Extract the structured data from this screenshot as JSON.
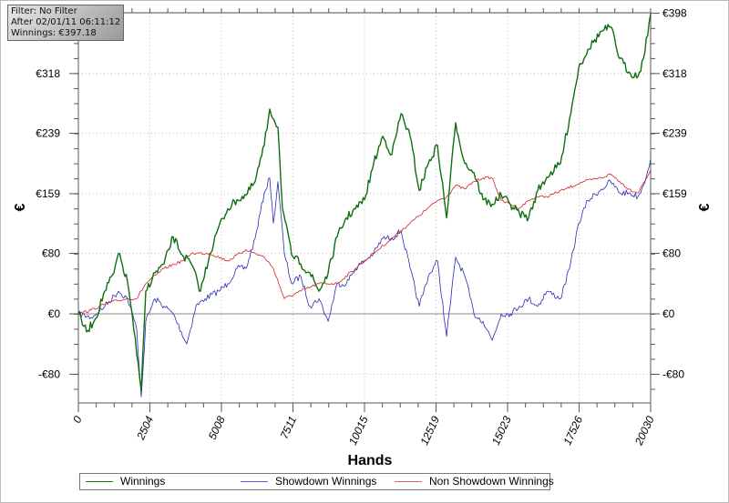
{
  "info_box": {
    "filter": "Filter: No Filter",
    "after": "After 02/01/11 06:11:12",
    "winnings": "Winnings: €397.18"
  },
  "chart_data": {
    "type": "line",
    "title": "",
    "xlabel": "Hands",
    "ylabel": "€",
    "xlim": [
      0,
      20030
    ],
    "ylim": [
      -118,
      398.5
    ],
    "x_ticks": [
      0,
      2504,
      5008,
      7511,
      10015,
      12519,
      15023,
      17526,
      20030
    ],
    "y_ticks": [
      {
        "value": 398,
        "label": "€398"
      },
      {
        "value": 318,
        "label": "€318"
      },
      {
        "value": 239,
        "label": "€239"
      },
      {
        "value": 159,
        "label": "€159"
      },
      {
        "value": 80,
        "label": "€80"
      },
      {
        "value": 0,
        "label": "€0"
      },
      {
        "value": -80,
        "label": "-€80"
      }
    ],
    "grid": true,
    "legend_position": "bottom",
    "series": [
      {
        "name": "Winnings",
        "color": "#1a7a1a",
        "x": [
          0,
          287,
          606,
          925,
          1244,
          1404,
          1723,
          1882,
          2042,
          2201,
          2361,
          2680,
          2999,
          3318,
          3637,
          3956,
          4275,
          4594,
          4913,
          5232,
          5551,
          5870,
          6189,
          6508,
          6699,
          6986,
          7146,
          7465,
          7784,
          8103,
          8422,
          8741,
          9060,
          9379,
          9698,
          10017,
          10336,
          10655,
          10974,
          11293,
          11612,
          11931,
          12250,
          12569,
          12888,
          13207,
          13526,
          13845,
          14164,
          14483,
          14802,
          15121,
          15440,
          15759,
          16078,
          16397,
          16876,
          17195,
          17514,
          17833,
          18311,
          18630,
          18949,
          19268,
          19587,
          19778,
          20030
        ],
        "y": [
          0,
          -24,
          -6,
          30,
          54,
          80,
          42,
          0,
          -54,
          -102,
          30,
          54,
          66,
          102,
          78,
          66,
          30,
          78,
          115,
          139,
          151,
          157,
          175,
          223,
          271,
          247,
          139,
          78,
          66,
          54,
          30,
          54,
          102,
          127,
          139,
          151,
          199,
          235,
          211,
          265,
          235,
          163,
          199,
          223,
          127,
          253,
          199,
          187,
          151,
          145,
          157,
          145,
          133,
          127,
          163,
          181,
          199,
          259,
          326,
          350,
          374,
          380,
          338,
          320,
          314,
          338,
          397
        ]
      },
      {
        "name": "Showdown Winnings",
        "color": "#2e2eb8",
        "x": [
          0,
          447,
          925,
          1404,
          1723,
          2042,
          2201,
          2361,
          2680,
          2999,
          3318,
          3796,
          4115,
          4434,
          4913,
          5232,
          5551,
          5870,
          6189,
          6508,
          6699,
          6827,
          6986,
          7209,
          7465,
          7784,
          8103,
          8422,
          8741,
          9060,
          9379,
          9698,
          10017,
          10336,
          10655,
          10974,
          11293,
          11612,
          11931,
          12250,
          12569,
          12888,
          13207,
          13526,
          13845,
          14164,
          14483,
          14802,
          15121,
          15440,
          15759,
          16078,
          16397,
          16876,
          17195,
          17514,
          17833,
          18311,
          18630,
          18949,
          19268,
          19587,
          19778,
          20030
        ],
        "y": [
          0,
          -5,
          10,
          30,
          20,
          -20,
          -110,
          -10,
          20,
          10,
          0,
          -40,
          10,
          20,
          30,
          40,
          60,
          60,
          100,
          160,
          180,
          120,
          175,
          80,
          40,
          50,
          10,
          20,
          -10,
          40,
          40,
          60,
          70,
          80,
          100,
          100,
          110,
          60,
          10,
          50,
          70,
          -30,
          75,
          50,
          0,
          -10,
          -35,
          0,
          0,
          10,
          20,
          10,
          30,
          20,
          60,
          120,
          150,
          165,
          175,
          160,
          160,
          155,
          170,
          205
        ]
      },
      {
        "name": "Non Showdown Winnings",
        "color": "#d42020",
        "x": [
          0,
          447,
          1085,
          1723,
          2042,
          2361,
          2999,
          3637,
          3956,
          4594,
          5232,
          5870,
          6508,
          6827,
          7209,
          7784,
          8422,
          9060,
          9698,
          10336,
          10974,
          11612,
          11931,
          12569,
          12888,
          13207,
          13526,
          13845,
          14164,
          14483,
          14802,
          15440,
          15759,
          16078,
          16397,
          17036,
          17674,
          18311,
          18630,
          18949,
          19268,
          19587,
          20030
        ],
        "y": [
          0,
          5,
          15,
          20,
          20,
          40,
          60,
          70,
          80,
          80,
          70,
          85,
          75,
          60,
          20,
          30,
          40,
          40,
          60,
          80,
          100,
          120,
          130,
          150,
          155,
          170,
          165,
          175,
          180,
          180,
          150,
          140,
          150,
          155,
          155,
          165,
          175,
          180,
          185,
          175,
          165,
          160,
          190
        ]
      }
    ]
  }
}
